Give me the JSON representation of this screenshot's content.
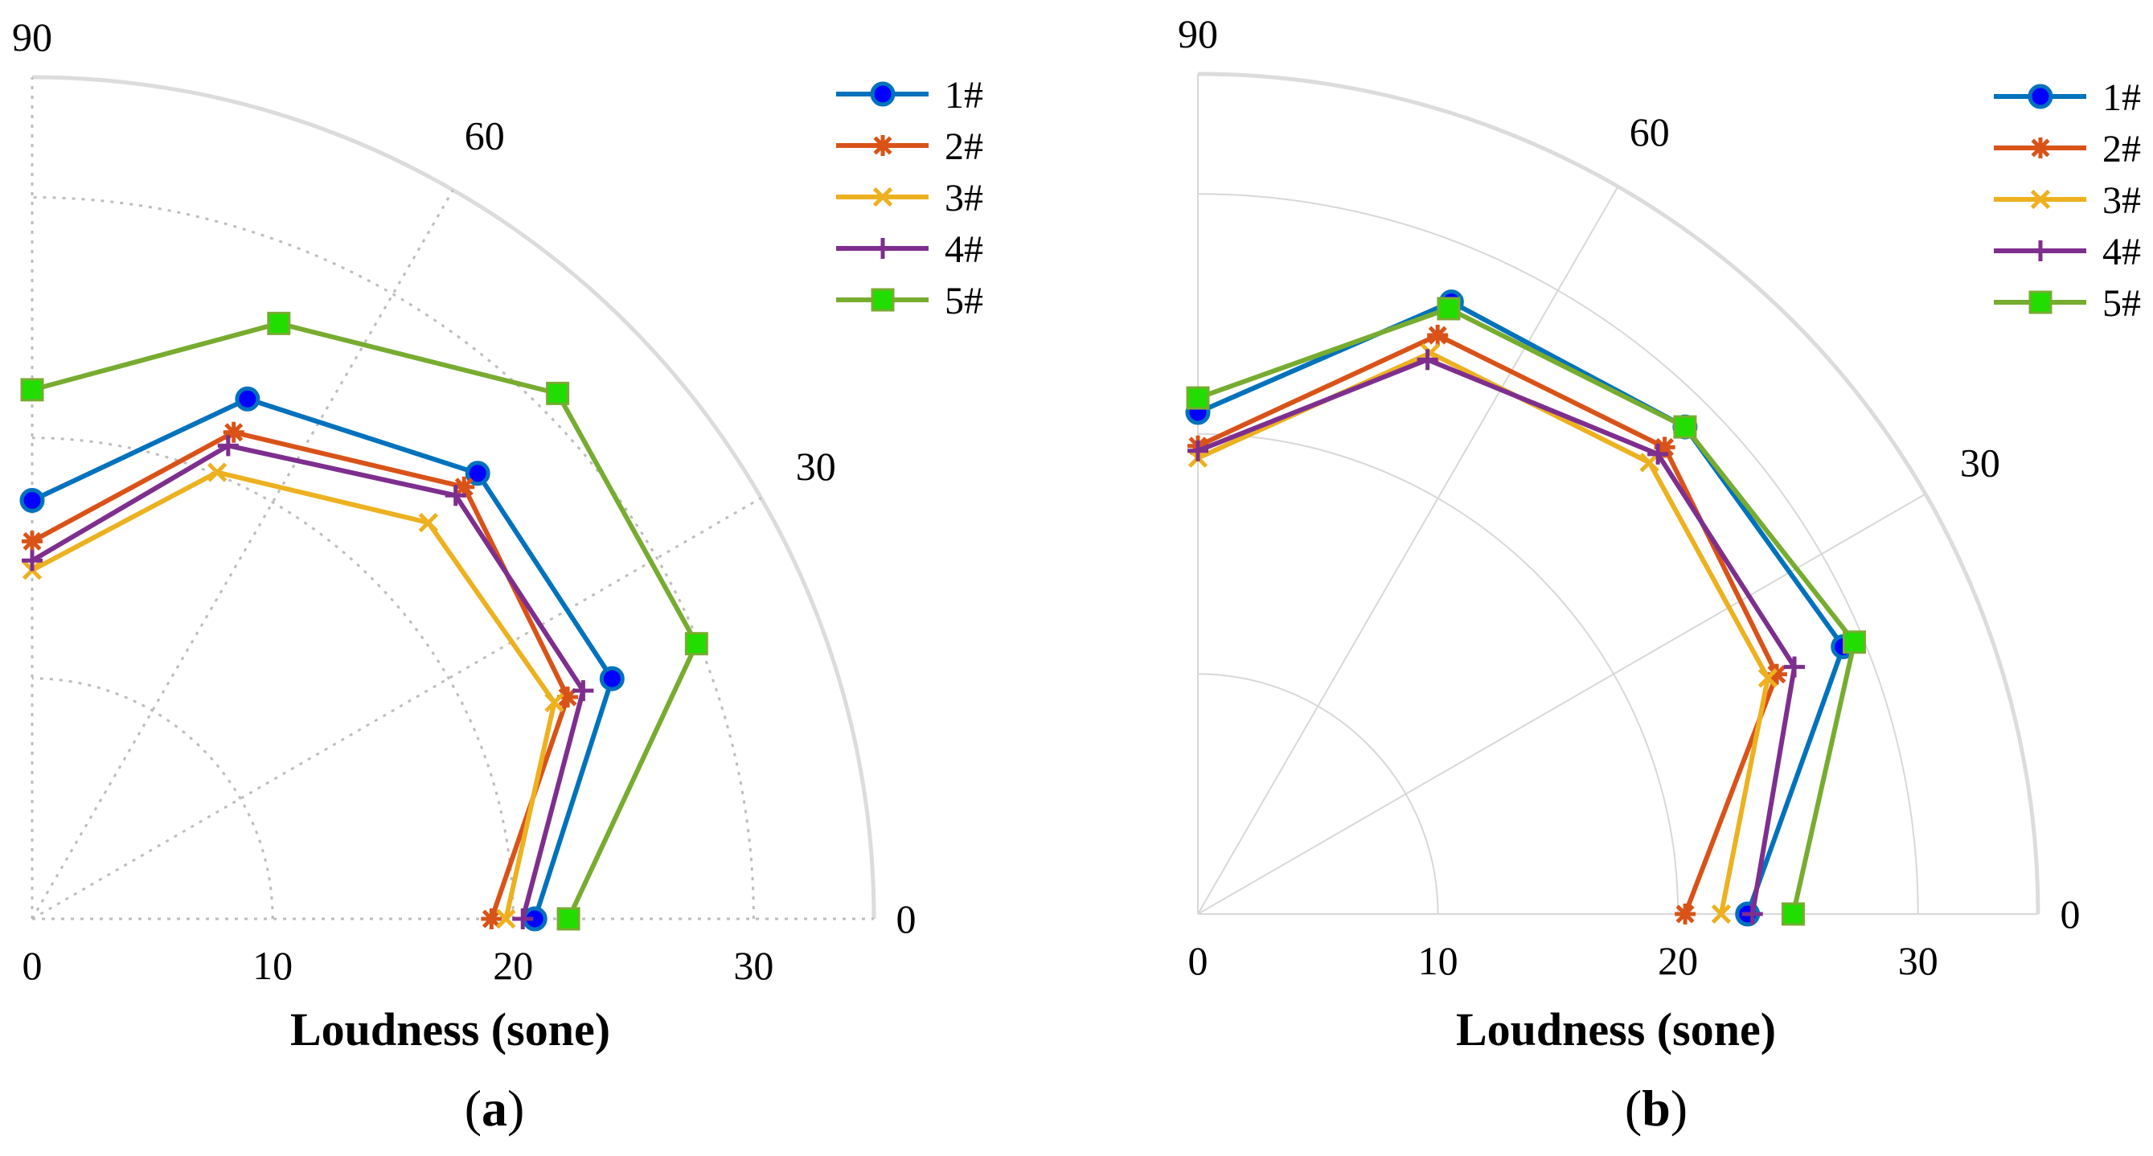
{
  "figure": {
    "panel_labels": [
      {
        "open": "(",
        "letter": "a",
        "close": ")"
      },
      {
        "open": "(",
        "letter": "b",
        "close": ")"
      }
    ]
  },
  "chart_data": [
    {
      "type": "polar",
      "panel": "a",
      "title": "",
      "xlabel": "Loudness (sone)",
      "radial_ticks": [
        0,
        10,
        20,
        30
      ],
      "radial_range": [
        0,
        35
      ],
      "angle_ticks": [
        0,
        30,
        60,
        90
      ],
      "angle_range_deg": [
        0,
        90
      ],
      "grid": "dotted",
      "legend_position": "top-right",
      "series": [
        {
          "name": "1#",
          "color": "#0072BD",
          "marker": "circle",
          "angles": [
            0,
            22.5,
            45,
            67.5,
            90
          ],
          "values": [
            20.9,
            26.1,
            26.2,
            23.4,
            17.4
          ]
        },
        {
          "name": "2#",
          "color": "#D95319",
          "marker": "asterisk",
          "angles": [
            0,
            22.5,
            45,
            67.5,
            90
          ],
          "values": [
            19.1,
            24.1,
            25.4,
            21.9,
            15.7
          ]
        },
        {
          "name": "3#",
          "color": "#EDB120",
          "marker": "x",
          "angles": [
            0,
            22.5,
            45,
            67.5,
            90
          ],
          "values": [
            19.7,
            23.5,
            23.3,
            20.1,
            14.5
          ]
        },
        {
          "name": "4#",
          "color": "#7E2F8E",
          "marker": "plus",
          "angles": [
            0,
            22.5,
            45,
            67.5,
            90
          ],
          "values": [
            20.4,
            24.8,
            24.9,
            21.3,
            14.9
          ]
        },
        {
          "name": "5#",
          "color": "#77AC30",
          "marker": "square",
          "angles": [
            0,
            22.5,
            45,
            67.5,
            90
          ],
          "values": [
            22.3,
            29.9,
            30.9,
            26.8,
            22.0
          ]
        }
      ]
    },
    {
      "type": "polar",
      "panel": "b",
      "title": "",
      "xlabel": "Loudness (sone)",
      "radial_ticks": [
        0,
        10,
        20,
        30
      ],
      "radial_range": [
        0,
        35
      ],
      "angle_ticks": [
        0,
        30,
        60,
        90
      ],
      "angle_range_deg": [
        0,
        90
      ],
      "grid": "solid",
      "legend_position": "top-right",
      "series": [
        {
          "name": "1#",
          "color": "#0072BD",
          "marker": "circle",
          "angles": [
            0,
            22.5,
            45,
            67.5,
            90
          ],
          "values": [
            22.9,
            29.1,
            28.7,
            27.6,
            20.9
          ]
        },
        {
          "name": "2#",
          "color": "#D95319",
          "marker": "asterisk",
          "angles": [
            0,
            22.5,
            45,
            67.5,
            90
          ],
          "values": [
            20.3,
            26.1,
            27.5,
            26.1,
            19.5
          ]
        },
        {
          "name": "3#",
          "color": "#EDB120",
          "marker": "x",
          "angles": [
            0,
            22.5,
            45,
            67.5,
            90
          ],
          "values": [
            21.8,
            25.7,
            26.6,
            25.3,
            19.0
          ]
        },
        {
          "name": "4#",
          "color": "#7E2F8E",
          "marker": "plus",
          "angles": [
            0,
            22.5,
            45,
            67.5,
            90
          ],
          "values": [
            23.1,
            26.9,
            27.1,
            25.0,
            19.3
          ]
        },
        {
          "name": "5#",
          "color": "#77AC30",
          "marker": "square",
          "angles": [
            0,
            22.5,
            45,
            67.5,
            90
          ],
          "values": [
            24.8,
            29.6,
            28.7,
            27.3,
            21.5
          ]
        }
      ]
    }
  ]
}
